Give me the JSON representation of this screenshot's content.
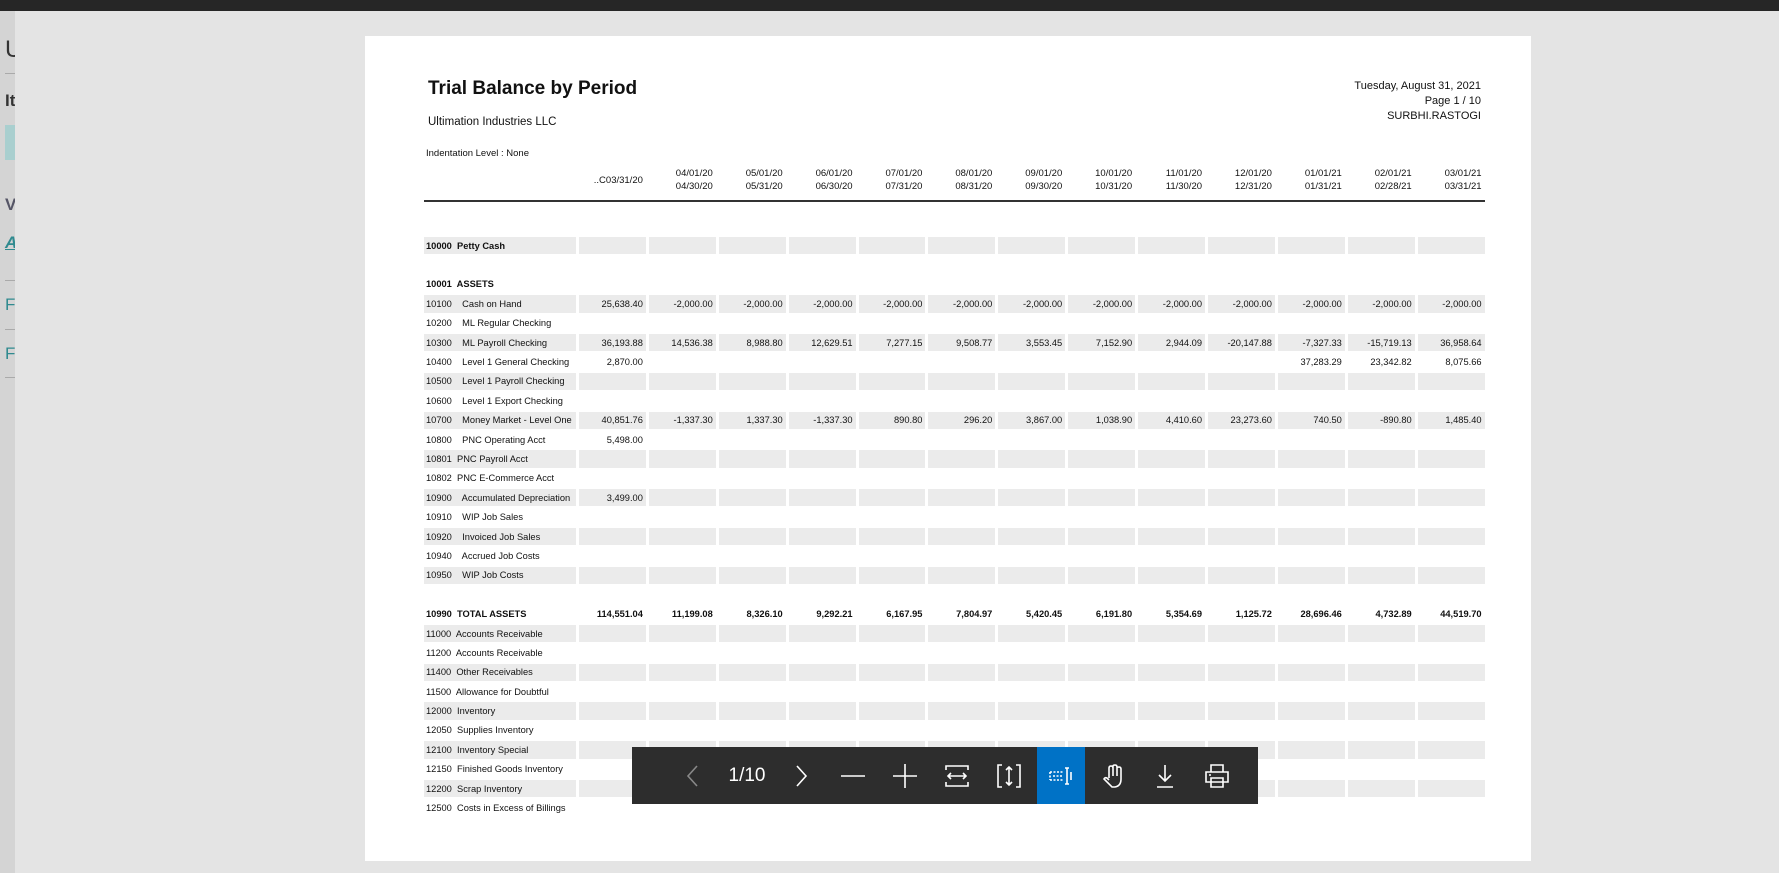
{
  "background_panel": {
    "clipped_letters": [
      "U",
      "It",
      "V",
      "A",
      "F",
      "F"
    ]
  },
  "report": {
    "title": "Trial Balance by Period",
    "company": "Ultimation Industries LLC",
    "date": "Tuesday, August 31, 2021",
    "page": "Page 1 / 10",
    "user": "SURBHI.RASTOGI",
    "indentation": "Indentation Level : None",
    "columns": [
      {
        "line1": "",
        "line2": "..C03/31/20"
      },
      {
        "line1": "04/01/20",
        "line2": "04/30/20"
      },
      {
        "line1": "05/01/20",
        "line2": "05/31/20"
      },
      {
        "line1": "06/01/20",
        "line2": "06/30/20"
      },
      {
        "line1": "07/01/20",
        "line2": "07/31/20"
      },
      {
        "line1": "08/01/20",
        "line2": "08/31/20"
      },
      {
        "line1": "09/01/20",
        "line2": "09/30/20"
      },
      {
        "line1": "10/01/20",
        "line2": "10/31/20"
      },
      {
        "line1": "11/01/20",
        "line2": "11/30/20"
      },
      {
        "line1": "12/01/20",
        "line2": "12/31/20"
      },
      {
        "line1": "01/01/21",
        "line2": "01/31/21"
      },
      {
        "line1": "02/01/21",
        "line2": "02/28/21"
      },
      {
        "line1": "03/01/21",
        "line2": "03/31/21"
      }
    ],
    "rows": [
      {
        "label": "10000  Petty Cash",
        "bold": true,
        "banded": true,
        "values": [
          "",
          "",
          "",
          "",
          "",
          "",
          "",
          "",
          "",
          "",
          "",
          "",
          ""
        ]
      },
      {
        "spacer": true
      },
      {
        "label": "10001  ASSETS",
        "bold": true,
        "banded": false,
        "values": [
          "",
          "",
          "",
          "",
          "",
          "",
          "",
          "",
          "",
          "",
          "",
          "",
          ""
        ]
      },
      {
        "label": "10100    Cash on Hand",
        "banded": true,
        "values": [
          "25,638.40",
          "-2,000.00",
          "-2,000.00",
          "-2,000.00",
          "-2,000.00",
          "-2,000.00",
          "-2,000.00",
          "-2,000.00",
          "-2,000.00",
          "-2,000.00",
          "-2,000.00",
          "-2,000.00",
          "-2,000.00"
        ]
      },
      {
        "label": "10200    ML Regular Checking",
        "banded": false,
        "values": [
          "",
          "",
          "",
          "",
          "",
          "",
          "",
          "",
          "",
          "",
          "",
          "",
          ""
        ]
      },
      {
        "label": "10300    ML Payroll Checking",
        "banded": true,
        "values": [
          "36,193.88",
          "14,536.38",
          "8,988.80",
          "12,629.51",
          "7,277.15",
          "9,508.77",
          "3,553.45",
          "7,152.90",
          "2,944.09",
          "-20,147.88",
          "-7,327.33",
          "-15,719.13",
          "36,958.64"
        ]
      },
      {
        "label": "10400    Level 1 General Checking",
        "banded": false,
        "values": [
          "2,870.00",
          "",
          "",
          "",
          "",
          "",
          "",
          "",
          "",
          "",
          "37,283.29",
          "23,342.82",
          "8,075.66"
        ]
      },
      {
        "label": "10500    Level 1 Payroll Checking",
        "banded": true,
        "values": [
          "",
          "",
          "",
          "",
          "",
          "",
          "",
          "",
          "",
          "",
          "",
          "",
          ""
        ]
      },
      {
        "label": "10600    Level 1 Export Checking",
        "banded": false,
        "values": [
          "",
          "",
          "",
          "",
          "",
          "",
          "",
          "",
          "",
          "",
          "",
          "",
          ""
        ]
      },
      {
        "label": "10700    Money Market - Level One",
        "banded": true,
        "values": [
          "40,851.76",
          "-1,337.30",
          "1,337.30",
          "-1,337.30",
          "890.80",
          "296.20",
          "3,867.00",
          "1,038.90",
          "4,410.60",
          "23,273.60",
          "740.50",
          "-890.80",
          "1,485.40"
        ]
      },
      {
        "label": "10800    PNC Operating Acct",
        "banded": false,
        "values": [
          "5,498.00",
          "",
          "",
          "",
          "",
          "",
          "",
          "",
          "",
          "",
          "",
          "",
          ""
        ]
      },
      {
        "label": "10801  PNC Payroll Acct",
        "banded": true,
        "values": [
          "",
          "",
          "",
          "",
          "",
          "",
          "",
          "",
          "",
          "",
          "",
          "",
          ""
        ]
      },
      {
        "label": "10802  PNC E-Commerce Acct",
        "banded": false,
        "values": [
          "",
          "",
          "",
          "",
          "",
          "",
          "",
          "",
          "",
          "",
          "",
          "",
          ""
        ]
      },
      {
        "label": "10900    Accumulated Depreciation",
        "banded": true,
        "values": [
          "3,499.00",
          "",
          "",
          "",
          "",
          "",
          "",
          "",
          "",
          "",
          "",
          "",
          ""
        ]
      },
      {
        "label": "10910    WIP Job Sales",
        "banded": false,
        "values": [
          "",
          "",
          "",
          "",
          "",
          "",
          "",
          "",
          "",
          "",
          "",
          "",
          ""
        ]
      },
      {
        "label": "10920    Invoiced Job Sales",
        "banded": true,
        "values": [
          "",
          "",
          "",
          "",
          "",
          "",
          "",
          "",
          "",
          "",
          "",
          "",
          ""
        ]
      },
      {
        "label": "10940    Accrued Job Costs",
        "banded": false,
        "values": [
          "",
          "",
          "",
          "",
          "",
          "",
          "",
          "",
          "",
          "",
          "",
          "",
          ""
        ]
      },
      {
        "label": "10950    WIP Job Costs",
        "banded": true,
        "values": [
          "",
          "",
          "",
          "",
          "",
          "",
          "",
          "",
          "",
          "",
          "",
          "",
          ""
        ]
      },
      {
        "spacer": true
      },
      {
        "label": "10990  TOTAL ASSETS",
        "bold": true,
        "banded": false,
        "values": [
          "114,551.04",
          "11,199.08",
          "8,326.10",
          "9,292.21",
          "6,167.95",
          "7,804.97",
          "5,420.45",
          "6,191.80",
          "5,354.69",
          "1,125.72",
          "28,696.46",
          "4,732.89",
          "44,519.70"
        ]
      },
      {
        "label": "11000  Accounts Receivable",
        "banded": true,
        "values": [
          "",
          "",
          "",
          "",
          "",
          "",
          "",
          "",
          "",
          "",
          "",
          "",
          ""
        ]
      },
      {
        "label": "11200  Accounts Receivable",
        "banded": false,
        "values": [
          "",
          "",
          "",
          "",
          "",
          "",
          "",
          "",
          "",
          "",
          "",
          "",
          ""
        ]
      },
      {
        "label": "11400  Other Receivables",
        "banded": true,
        "values": [
          "",
          "",
          "",
          "",
          "",
          "",
          "",
          "",
          "",
          "",
          "",
          "",
          ""
        ]
      },
      {
        "label": "11500  Allowance for Doubtful",
        "banded": false,
        "values": [
          "",
          "",
          "",
          "",
          "",
          "",
          "",
          "",
          "",
          "",
          "",
          "",
          ""
        ]
      },
      {
        "label": "12000  Inventory",
        "banded": true,
        "values": [
          "",
          "",
          "",
          "",
          "",
          "",
          "",
          "",
          "",
          "",
          "",
          "",
          ""
        ]
      },
      {
        "label": "12050  Supplies Inventory",
        "banded": false,
        "values": [
          "",
          "",
          "",
          "",
          "",
          "",
          "",
          "",
          "",
          "",
          "",
          "",
          ""
        ]
      },
      {
        "label": "12100  Inventory Special",
        "banded": true,
        "values": [
          "",
          "",
          "",
          "",
          "",
          "",
          "",
          "",
          "",
          "",
          "",
          "",
          ""
        ]
      },
      {
        "label": "12150  Finished Goods Inventory",
        "banded": false,
        "values": [
          "",
          "",
          "",
          "",
          "",
          "",
          "",
          "",
          "",
          "",
          "",
          "",
          ""
        ]
      },
      {
        "label": "12200  Scrap Inventory",
        "banded": true,
        "values": [
          "",
          "",
          "",
          "",
          "",
          "",
          "",
          "",
          "",
          "",
          "",
          "",
          ""
        ]
      },
      {
        "label": "12500  Costs in Excess of Billings",
        "banded": false,
        "values": [
          "",
          "",
          "",
          "",
          "",
          "",
          "",
          "",
          "",
          "",
          "",
          "",
          ""
        ]
      }
    ]
  },
  "toolbar": {
    "page_indicator": "1/10",
    "active_tool": "text-select",
    "active_color": "#0072c6",
    "buttons": [
      "previous-page",
      "next-page",
      "zoom-out",
      "zoom-in",
      "fit-width",
      "fit-page",
      "text-select",
      "pan",
      "download",
      "print"
    ]
  }
}
